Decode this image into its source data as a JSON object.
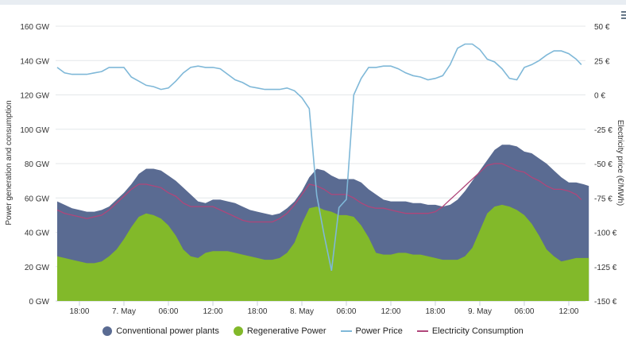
{
  "chart_data": {
    "type": "area",
    "y_left": {
      "label": "Power generation and consumption",
      "range": [
        0,
        160
      ],
      "ticks": [
        "0 GW",
        "20 GW",
        "40 GW",
        "60 GW",
        "80 GW",
        "100 GW",
        "120 GW",
        "140 GW",
        "160 GW"
      ]
    },
    "y_right": {
      "label": "Electricity price (€/MWh)",
      "range": [
        -150,
        50
      ],
      "ticks": [
        "-150 €",
        "-125 €",
        "-100 €",
        "-75 €",
        "-50 €",
        "-25 €",
        "0 €",
        "25 €",
        "50 €"
      ]
    },
    "x_axis": {
      "range_hours": [
        12,
        75
      ],
      "ticks": [
        {
          "h": 15,
          "label": "18:00"
        },
        {
          "h": 21,
          "label": "7. May"
        },
        {
          "h": 27,
          "label": "06:00"
        },
        {
          "h": 33,
          "label": "12:00"
        },
        {
          "h": 39,
          "label": "18:00"
        },
        {
          "h": 45,
          "label": "8. May"
        },
        {
          "h": 51,
          "label": "06:00"
        },
        {
          "h": 57,
          "label": "12:00"
        },
        {
          "h": 63,
          "label": "18:00"
        },
        {
          "h": 69,
          "label": "9. May"
        },
        {
          "h": 75,
          "label": "06:00"
        },
        {
          "h": 81,
          "label": "12:00"
        }
      ]
    },
    "grid": true,
    "legend_position": "bottom",
    "series": [
      {
        "name": "Conventional power plants",
        "kind": "stacked-area-total",
        "color": "#5a6b92",
        "points": [
          [
            12,
            58
          ],
          [
            13,
            56
          ],
          [
            14,
            54
          ],
          [
            15,
            53
          ],
          [
            16,
            52
          ],
          [
            17,
            52
          ],
          [
            18,
            53
          ],
          [
            19,
            55
          ],
          [
            20,
            59
          ],
          [
            21,
            63
          ],
          [
            22,
            68
          ],
          [
            23,
            74
          ],
          [
            24,
            77
          ],
          [
            25,
            77
          ],
          [
            26,
            76
          ],
          [
            27,
            73
          ],
          [
            28,
            70
          ],
          [
            29,
            66
          ],
          [
            30,
            62
          ],
          [
            31,
            58
          ],
          [
            32,
            57
          ],
          [
            33,
            59
          ],
          [
            34,
            59
          ],
          [
            35,
            58
          ],
          [
            36,
            57
          ],
          [
            37,
            55
          ],
          [
            38,
            53
          ],
          [
            39,
            52
          ],
          [
            40,
            51
          ],
          [
            41,
            50
          ],
          [
            42,
            51
          ],
          [
            43,
            54
          ],
          [
            44,
            58
          ],
          [
            45,
            64
          ],
          [
            46,
            72
          ],
          [
            47,
            77
          ],
          [
            48,
            76
          ],
          [
            49,
            73
          ],
          [
            50,
            71
          ],
          [
            51,
            71
          ],
          [
            52,
            71
          ],
          [
            53,
            69
          ],
          [
            54,
            65
          ],
          [
            55,
            62
          ],
          [
            56,
            59
          ],
          [
            57,
            58
          ],
          [
            58,
            58
          ],
          [
            59,
            58
          ],
          [
            60,
            57
          ],
          [
            61,
            57
          ],
          [
            62,
            56
          ],
          [
            63,
            56
          ],
          [
            64,
            55
          ],
          [
            65,
            56
          ],
          [
            66,
            59
          ],
          [
            67,
            64
          ],
          [
            68,
            70
          ],
          [
            69,
            76
          ],
          [
            70,
            82
          ],
          [
            71,
            88
          ],
          [
            72,
            91
          ],
          [
            73,
            91
          ],
          [
            74,
            90
          ],
          [
            75,
            87
          ],
          [
            76,
            86
          ],
          [
            77,
            83
          ],
          [
            78,
            80
          ],
          [
            79,
            76
          ],
          [
            80,
            72
          ],
          [
            81,
            69
          ],
          [
            82,
            69
          ],
          [
            83,
            68
          ],
          [
            83.7,
            67
          ]
        ]
      },
      {
        "name": "Regenerative Power",
        "kind": "area",
        "color": "#82b92a",
        "points": [
          [
            12,
            26
          ],
          [
            13,
            25
          ],
          [
            14,
            24
          ],
          [
            15,
            23
          ],
          [
            16,
            22
          ],
          [
            17,
            22
          ],
          [
            18,
            23
          ],
          [
            19,
            26
          ],
          [
            20,
            30
          ],
          [
            21,
            36
          ],
          [
            22,
            43
          ],
          [
            23,
            49
          ],
          [
            24,
            51
          ],
          [
            25,
            50
          ],
          [
            26,
            48
          ],
          [
            27,
            44
          ],
          [
            28,
            38
          ],
          [
            29,
            30
          ],
          [
            30,
            26
          ],
          [
            31,
            25
          ],
          [
            32,
            28
          ],
          [
            33,
            29
          ],
          [
            34,
            29
          ],
          [
            35,
            29
          ],
          [
            36,
            28
          ],
          [
            37,
            27
          ],
          [
            38,
            26
          ],
          [
            39,
            25
          ],
          [
            40,
            24
          ],
          [
            41,
            24
          ],
          [
            42,
            25
          ],
          [
            43,
            28
          ],
          [
            44,
            34
          ],
          [
            45,
            45
          ],
          [
            46,
            54
          ],
          [
            47,
            55
          ],
          [
            48,
            53
          ],
          [
            49,
            52
          ],
          [
            50,
            50
          ],
          [
            51,
            50
          ],
          [
            52,
            49
          ],
          [
            53,
            44
          ],
          [
            54,
            37
          ],
          [
            55,
            28
          ],
          [
            56,
            27
          ],
          [
            57,
            27
          ],
          [
            58,
            28
          ],
          [
            59,
            28
          ],
          [
            60,
            27
          ],
          [
            61,
            27
          ],
          [
            62,
            26
          ],
          [
            63,
            25
          ],
          [
            64,
            24
          ],
          [
            65,
            24
          ],
          [
            66,
            24
          ],
          [
            67,
            26
          ],
          [
            68,
            31
          ],
          [
            69,
            41
          ],
          [
            70,
            51
          ],
          [
            71,
            55
          ],
          [
            72,
            56
          ],
          [
            73,
            55
          ],
          [
            74,
            53
          ],
          [
            75,
            50
          ],
          [
            76,
            45
          ],
          [
            77,
            38
          ],
          [
            78,
            30
          ],
          [
            79,
            26
          ],
          [
            80,
            23
          ],
          [
            81,
            24
          ],
          [
            82,
            25
          ],
          [
            83,
            25
          ],
          [
            83.7,
            25
          ]
        ]
      },
      {
        "name": "Power Price",
        "kind": "line",
        "axis": "right",
        "color": "#7fb8d8",
        "points": [
          [
            12,
            20
          ],
          [
            13,
            16
          ],
          [
            14,
            15
          ],
          [
            15,
            15
          ],
          [
            16,
            15
          ],
          [
            17,
            16
          ],
          [
            18,
            17
          ],
          [
            19,
            20
          ],
          [
            20,
            20
          ],
          [
            21,
            20
          ],
          [
            22,
            13
          ],
          [
            23,
            10
          ],
          [
            24,
            7
          ],
          [
            25,
            6
          ],
          [
            26,
            4
          ],
          [
            27,
            5
          ],
          [
            28,
            10
          ],
          [
            29,
            16
          ],
          [
            30,
            20
          ],
          [
            31,
            21
          ],
          [
            32,
            20
          ],
          [
            33,
            20
          ],
          [
            34,
            19
          ],
          [
            35,
            15
          ],
          [
            36,
            11
          ],
          [
            37,
            9
          ],
          [
            38,
            6
          ],
          [
            39,
            5
          ],
          [
            40,
            4
          ],
          [
            41,
            4
          ],
          [
            42,
            4
          ],
          [
            43,
            5
          ],
          [
            44,
            3
          ],
          [
            45,
            -2
          ],
          [
            46,
            -10
          ],
          [
            47,
            -73
          ],
          [
            48,
            -102
          ],
          [
            49,
            -128
          ],
          [
            50,
            -82
          ],
          [
            51,
            -76
          ],
          [
            52,
            0
          ],
          [
            53,
            12
          ],
          [
            54,
            20
          ],
          [
            55,
            20
          ],
          [
            56,
            21
          ],
          [
            57,
            21
          ],
          [
            58,
            19
          ],
          [
            59,
            16
          ],
          [
            60,
            14
          ],
          [
            61,
            13
          ],
          [
            62,
            11
          ],
          [
            63,
            12
          ],
          [
            64,
            14
          ],
          [
            65,
            22
          ],
          [
            66,
            34
          ],
          [
            67,
            37
          ],
          [
            68,
            37
          ],
          [
            69,
            33
          ],
          [
            70,
            26
          ],
          [
            71,
            24
          ],
          [
            72,
            19
          ],
          [
            73,
            12
          ],
          [
            74,
            11
          ],
          [
            75,
            20
          ],
          [
            76,
            22
          ],
          [
            77,
            25
          ],
          [
            78,
            29
          ],
          [
            79,
            32
          ],
          [
            80,
            32
          ],
          [
            81,
            30
          ],
          [
            82,
            26
          ],
          [
            82.7,
            22
          ]
        ]
      },
      {
        "name": "Electricity Consumption",
        "kind": "line",
        "axis": "left",
        "color": "#b0467a",
        "points": [
          [
            12,
            53
          ],
          [
            13,
            51
          ],
          [
            14,
            50
          ],
          [
            15,
            49
          ],
          [
            16,
            48
          ],
          [
            17,
            49
          ],
          [
            18,
            50
          ],
          [
            19,
            53
          ],
          [
            20,
            57
          ],
          [
            21,
            61
          ],
          [
            22,
            65
          ],
          [
            23,
            68
          ],
          [
            24,
            68
          ],
          [
            25,
            67
          ],
          [
            26,
            66
          ],
          [
            27,
            63
          ],
          [
            28,
            61
          ],
          [
            29,
            57
          ],
          [
            30,
            55
          ],
          [
            31,
            55
          ],
          [
            32,
            55
          ],
          [
            33,
            55
          ],
          [
            34,
            53
          ],
          [
            35,
            51
          ],
          [
            36,
            49
          ],
          [
            37,
            47
          ],
          [
            38,
            46
          ],
          [
            39,
            46
          ],
          [
            40,
            46
          ],
          [
            41,
            46
          ],
          [
            42,
            48
          ],
          [
            43,
            51
          ],
          [
            44,
            56
          ],
          [
            45,
            62
          ],
          [
            46,
            68
          ],
          [
            47,
            67
          ],
          [
            48,
            65
          ],
          [
            49,
            62
          ],
          [
            50,
            62
          ],
          [
            51,
            62
          ],
          [
            52,
            60
          ],
          [
            53,
            57
          ],
          [
            54,
            55
          ],
          [
            55,
            54
          ],
          [
            56,
            54
          ],
          [
            57,
            53
          ],
          [
            58,
            52
          ],
          [
            59,
            51
          ],
          [
            60,
            51
          ],
          [
            61,
            51
          ],
          [
            62,
            51
          ],
          [
            63,
            52
          ],
          [
            64,
            55
          ],
          [
            65,
            59
          ],
          [
            66,
            63
          ],
          [
            67,
            67
          ],
          [
            68,
            71
          ],
          [
            69,
            75
          ],
          [
            70,
            79
          ],
          [
            71,
            80
          ],
          [
            72,
            80
          ],
          [
            73,
            78
          ],
          [
            74,
            76
          ],
          [
            75,
            75
          ],
          [
            76,
            72
          ],
          [
            77,
            70
          ],
          [
            78,
            67
          ],
          [
            79,
            65
          ],
          [
            80,
            65
          ],
          [
            81,
            64
          ],
          [
            82,
            62
          ],
          [
            82.7,
            59
          ]
        ]
      }
    ]
  },
  "legend": {
    "items": [
      {
        "label": "Conventional power plants",
        "color": "#5a6b92",
        "shape": "circle"
      },
      {
        "label": "Regenerative Power",
        "color": "#82b92a",
        "shape": "circle"
      },
      {
        "label": "Power Price",
        "color": "#7fb8d8",
        "shape": "line"
      },
      {
        "label": "Electricity Consumption",
        "color": "#b0467a",
        "shape": "line"
      }
    ]
  },
  "menu": {
    "icon": "hamburger-menu-icon"
  }
}
